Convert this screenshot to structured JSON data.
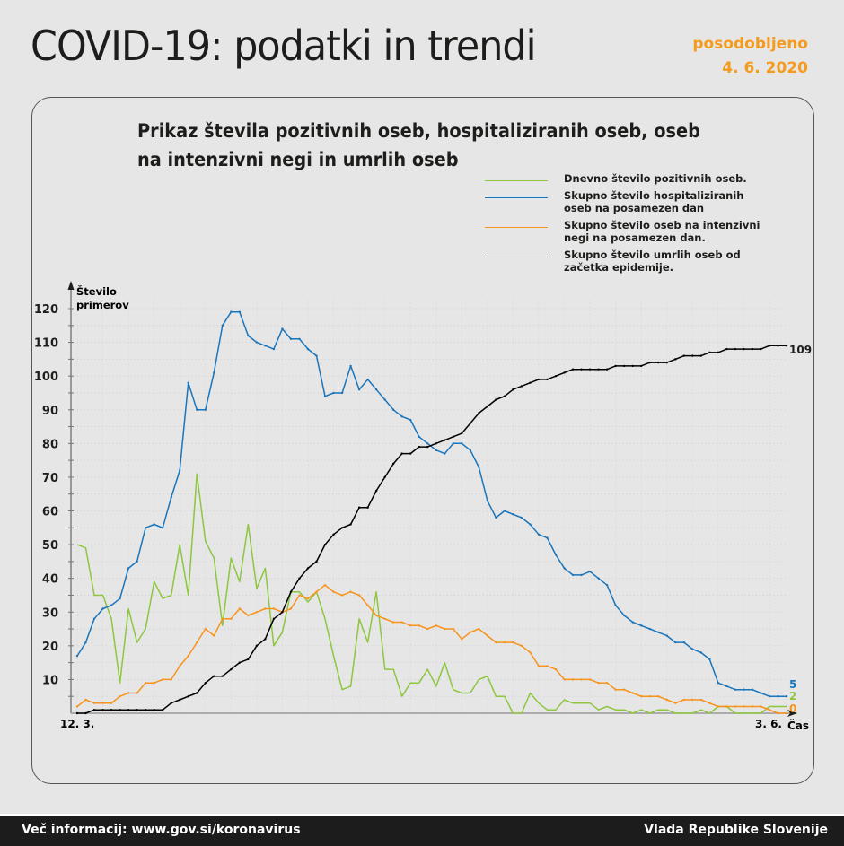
{
  "header": {
    "title": "COVID-19: podatki in trendi",
    "updated_label": "posodobljeno",
    "updated_date": "4. 6. 2020"
  },
  "footer": {
    "info": "Več informacij: www.gov.si/koronavirus",
    "org": "Vlada Republike Slovenije"
  },
  "chart_data": {
    "type": "line",
    "title": "Prikaz števila pozitivnih oseb, hospitaliziranih oseb, oseb na intenzivni negi in umrlih oseb",
    "ylabel": "Število primerov",
    "xlabel": "Čas",
    "x_start_label": "12. 3.",
    "x_end_label": "3. 6.",
    "ylim": [
      0,
      120
    ],
    "yticks": [
      10,
      20,
      30,
      40,
      50,
      60,
      70,
      80,
      90,
      100,
      110,
      120
    ],
    "grid": true,
    "legend_position": "top-right",
    "series": [
      {
        "name": "Dnevno število pozitivnih oseb.",
        "color": "#8dc63f",
        "end_label": "2",
        "values": [
          50,
          49,
          35,
          35,
          28,
          9,
          31,
          21,
          25,
          39,
          34,
          35,
          50,
          35,
          71,
          51,
          46,
          26,
          46,
          39,
          56,
          37,
          43,
          20,
          24,
          36,
          36,
          33,
          36,
          28,
          17,
          7,
          8,
          28,
          21,
          36,
          13,
          13,
          5,
          9,
          9,
          13,
          8,
          15,
          7,
          6,
          6,
          10,
          11,
          5,
          5,
          0,
          0,
          6,
          3,
          1,
          1,
          4,
          3,
          3,
          3,
          1,
          2,
          1,
          1,
          0,
          1,
          0,
          1,
          1,
          0,
          0,
          0,
          1,
          0,
          2,
          2,
          0,
          0,
          0,
          0,
          2,
          2,
          2
        ]
      },
      {
        "name": "Skupno število hospitaliziranih oseb na posamezen dan",
        "color": "#1b75bb",
        "end_label": "5",
        "values": [
          17,
          21,
          28,
          31,
          32,
          34,
          43,
          45,
          55,
          56,
          55,
          64,
          72,
          98,
          90,
          90,
          101,
          115,
          119,
          119,
          112,
          110,
          109,
          108,
          114,
          111,
          111,
          108,
          106,
          94,
          95,
          95,
          103,
          96,
          99,
          96,
          93,
          90,
          88,
          87,
          82,
          80,
          78,
          77,
          80,
          80,
          78,
          73,
          63,
          58,
          60,
          59,
          58,
          56,
          53,
          52,
          47,
          43,
          41,
          41,
          42,
          40,
          38,
          32,
          29,
          27,
          26,
          25,
          24,
          23,
          21,
          21,
          19,
          18,
          16,
          9,
          8,
          7,
          7,
          7,
          6,
          5,
          5,
          5
        ]
      },
      {
        "name": "Skupno število oseb na intenzivni negi na posamezen dan.",
        "color": "#f7941d",
        "end_label": "0",
        "values": [
          2,
          4,
          3,
          3,
          3,
          5,
          6,
          6,
          9,
          9,
          10,
          10,
          14,
          17,
          21,
          25,
          23,
          28,
          28,
          31,
          29,
          30,
          31,
          31,
          30,
          31,
          35,
          34,
          36,
          38,
          36,
          35,
          36,
          35,
          32,
          29,
          28,
          27,
          27,
          26,
          26,
          25,
          26,
          25,
          25,
          22,
          24,
          25,
          23,
          21,
          21,
          21,
          20,
          18,
          14,
          14,
          13,
          10,
          10,
          10,
          10,
          9,
          9,
          7,
          7,
          6,
          5,
          5,
          5,
          4,
          3,
          4,
          4,
          4,
          3,
          2,
          2,
          2,
          2,
          2,
          2,
          1,
          0,
          0
        ]
      },
      {
        "name": "Skupno število umrlih oseb od začetka epidemije.",
        "color": "#000000",
        "end_label": "109",
        "values": [
          0,
          0,
          1,
          1,
          1,
          1,
          1,
          1,
          1,
          1,
          1,
          3,
          4,
          5,
          6,
          9,
          11,
          11,
          13,
          15,
          16,
          20,
          22,
          28,
          30,
          36,
          40,
          43,
          45,
          50,
          53,
          55,
          56,
          61,
          61,
          66,
          70,
          74,
          77,
          77,
          79,
          79,
          80,
          81,
          82,
          83,
          86,
          89,
          91,
          93,
          94,
          96,
          97,
          98,
          99,
          99,
          100,
          101,
          102,
          102,
          102,
          102,
          102,
          103,
          103,
          103,
          103,
          104,
          104,
          104,
          105,
          106,
          106,
          106,
          107,
          107,
          108,
          108,
          108,
          108,
          108,
          109,
          109,
          109
        ]
      }
    ]
  }
}
